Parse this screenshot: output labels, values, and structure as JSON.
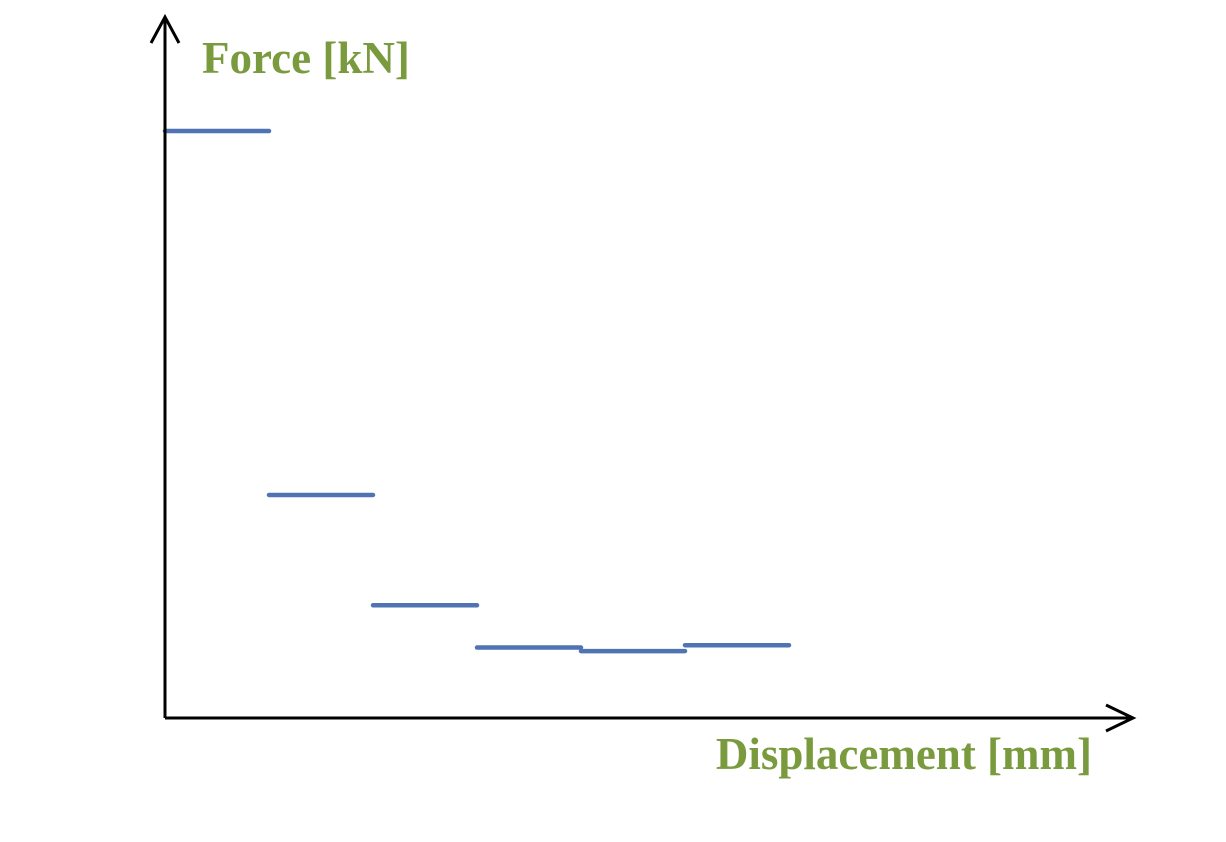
{
  "colors": {
    "axis": "#000000",
    "series": "#4f73b3",
    "label": "#7a9a3e"
  },
  "chart_data": {
    "type": "line",
    "title": "",
    "xlabel": "Displacement [mm]",
    "ylabel": "Force [kN]",
    "xlim": [
      0,
      9.3
    ],
    "ylim": [
      0,
      6
    ],
    "grid": false,
    "legend": "none",
    "ticks": "none",
    "series": [
      {
        "segments": [
          {
            "x": [
              0,
              1
            ],
            "y": [
              5.0,
              5.0
            ]
          },
          {
            "x": [
              1,
              2
            ],
            "y": [
              1.9,
              1.9
            ]
          },
          {
            "x": [
              2,
              3
            ],
            "y": [
              0.96,
              0.96
            ]
          },
          {
            "x": [
              3,
              4
            ],
            "y": [
              0.6,
              0.6
            ]
          },
          {
            "x": [
              4,
              5
            ],
            "y": [
              0.57,
              0.57
            ]
          },
          {
            "x": [
              5,
              6
            ],
            "y": [
              0.62,
              0.62
            ]
          }
        ]
      }
    ]
  }
}
